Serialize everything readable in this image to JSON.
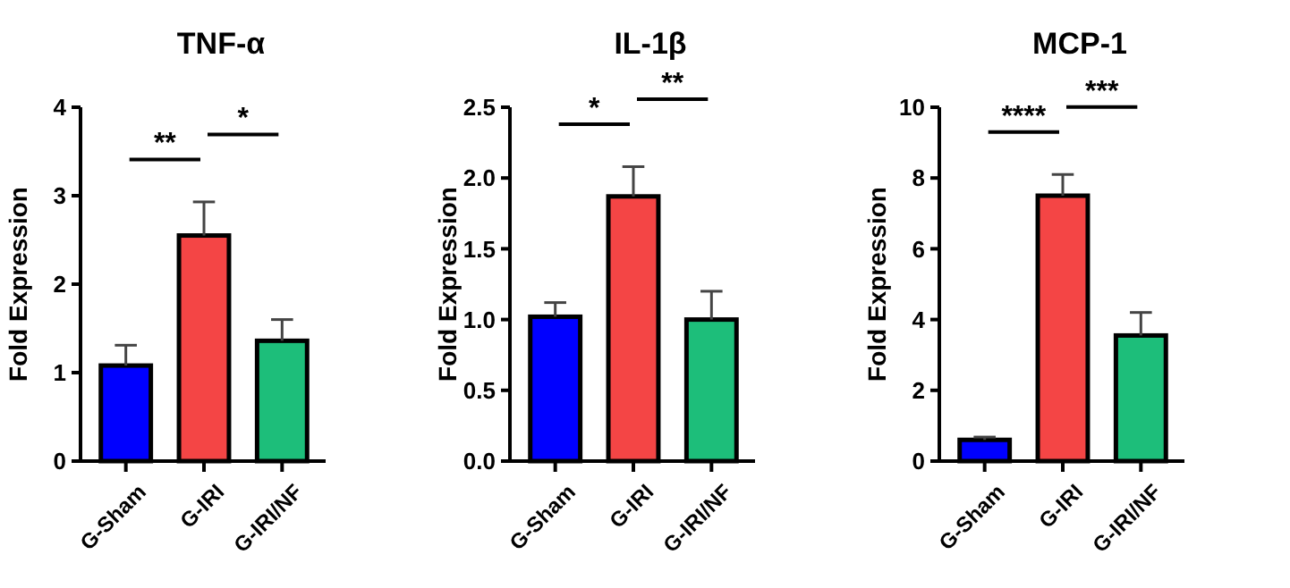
{
  "chart_data": [
    {
      "type": "bar",
      "title": "TNF-α",
      "ylabel": "Fold Expression",
      "categories": [
        "G-Sham",
        "G-IRI",
        "G-IRI/NF"
      ],
      "values": [
        1.08,
        2.55,
        1.36
      ],
      "colors": [
        "#0000ff",
        "#f44545",
        "#1dbe7a"
      ],
      "errors": [
        [
          1.08,
          1.31
        ],
        [
          2.55,
          2.93
        ],
        [
          1.36,
          1.6
        ]
      ],
      "ylim": [
        0,
        4
      ],
      "yticks": [
        0,
        1,
        2,
        3,
        4
      ],
      "annotations": [
        "**",
        "*"
      ]
    },
    {
      "type": "bar",
      "title": "IL-1β",
      "ylabel": "Fold Expression",
      "categories": [
        "G-Sham",
        "G-IRI",
        "G-IRI/NF"
      ],
      "values": [
        1.02,
        1.87,
        1.0
      ],
      "colors": [
        "#0000ff",
        "#f44545",
        "#1dbe7a"
      ],
      "errors": [
        [
          1.02,
          1.12
        ],
        [
          1.87,
          2.08
        ],
        [
          1.0,
          1.2
        ]
      ],
      "ylim": [
        0,
        2.5
      ],
      "yticks": [
        {
          "value": 0,
          "label": "0.0"
        },
        {
          "value": 0.5,
          "label": "0.5"
        },
        {
          "value": 1,
          "label": "1.0"
        },
        {
          "value": 1.5,
          "label": "1.5"
        },
        {
          "value": 2,
          "label": "2.0"
        },
        {
          "value": 2.5,
          "label": "2.5"
        }
      ],
      "annotations": [
        "*",
        "**"
      ]
    },
    {
      "type": "bar",
      "title": "MCP-1",
      "ylabel": "Fold Expression",
      "categories": [
        "G-Sham",
        "G-IRI",
        "G-IRI/NF"
      ],
      "values": [
        0.6,
        7.5,
        3.55
      ],
      "colors": [
        "#0000ff",
        "#f44545",
        "#1dbe7a"
      ],
      "errors": [
        [
          0.6,
          0.68
        ],
        [
          7.5,
          8.1
        ],
        [
          3.55,
          4.2
        ]
      ],
      "ylim": [
        0,
        10
      ],
      "yticks": [
        0,
        2,
        4,
        6,
        8,
        10
      ],
      "annotations": [
        "****",
        "***"
      ]
    }
  ]
}
